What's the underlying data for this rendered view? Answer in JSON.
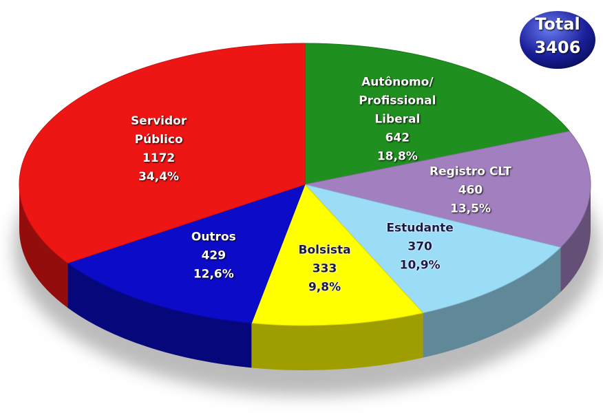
{
  "chart_data": {
    "type": "pie",
    "total_label": "Total",
    "total": 3406,
    "categories": [
      "Autônomo/\nProfissional\nLiberal",
      "Registro CLT",
      "Estudante",
      "Bolsista",
      "Outros",
      "Servidor\nPúblico"
    ],
    "values": [
      642,
      460,
      370,
      333,
      429,
      1172
    ],
    "percent_values": [
      18.8,
      13.5,
      10.9,
      9.8,
      12.6,
      34.4
    ],
    "percent_labels": [
      "18,8%",
      "13,5%",
      "10,9%",
      "9,8%",
      "12,6%",
      "34,4%"
    ],
    "colors": [
      "#1f8f1f",
      "#a27fbf",
      "#9bdcf7",
      "#ffff00",
      "#0b0bc8",
      "#ee1515"
    ]
  }
}
